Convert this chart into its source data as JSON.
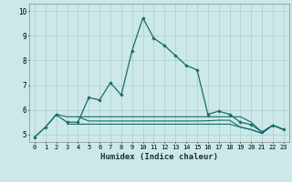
{
  "xlabel": "Humidex (Indice chaleur)",
  "ylabel": "",
  "bg_color": "#cce8e8",
  "grid_color": "#aacfcf",
  "line_color": "#1a6b6b",
  "xlim": [
    -0.5,
    23.5
  ],
  "ylim": [
    4.7,
    10.3
  ],
  "xticks": [
    0,
    1,
    2,
    3,
    4,
    5,
    6,
    7,
    8,
    9,
    10,
    11,
    12,
    13,
    14,
    15,
    16,
    17,
    18,
    19,
    20,
    21,
    22,
    23
  ],
  "yticks": [
    5,
    6,
    7,
    8,
    9,
    10
  ],
  "line1_x": [
    0,
    1,
    2,
    3,
    4,
    5,
    6,
    7,
    8,
    9,
    10,
    11,
    12,
    13,
    14,
    15,
    16,
    17,
    18,
    19,
    20,
    21,
    22,
    23
  ],
  "line1_y": [
    4.9,
    5.3,
    5.8,
    5.5,
    5.5,
    6.5,
    6.4,
    7.1,
    6.6,
    8.4,
    9.72,
    8.9,
    8.6,
    8.2,
    7.8,
    7.62,
    5.82,
    5.95,
    5.82,
    5.5,
    5.4,
    5.1,
    5.38,
    5.2
  ],
  "line2_x": [
    0,
    1,
    2,
    3,
    4,
    5,
    6,
    7,
    8,
    9,
    10,
    11,
    12,
    13,
    14,
    15,
    16,
    17,
    18,
    19,
    20,
    21,
    22,
    23
  ],
  "line2_y": [
    4.9,
    5.3,
    5.82,
    5.72,
    5.72,
    5.72,
    5.72,
    5.72,
    5.72,
    5.72,
    5.72,
    5.72,
    5.72,
    5.72,
    5.72,
    5.72,
    5.72,
    5.72,
    5.72,
    5.72,
    5.5,
    5.1,
    5.38,
    5.2
  ],
  "line3_x": [
    3,
    4,
    5,
    6,
    7,
    8,
    9,
    10,
    11,
    12,
    13,
    14,
    15,
    16,
    17,
    18,
    19,
    20,
    21,
    22,
    23
  ],
  "line3_y": [
    5.42,
    5.42,
    5.42,
    5.42,
    5.42,
    5.42,
    5.42,
    5.42,
    5.42,
    5.42,
    5.42,
    5.42,
    5.42,
    5.42,
    5.42,
    5.42,
    5.3,
    5.2,
    5.05,
    5.38,
    5.2
  ],
  "line4_x": [
    4,
    5,
    6,
    7,
    8,
    9,
    10,
    11,
    12,
    13,
    14,
    15,
    16,
    17,
    18,
    19,
    20,
    21,
    22,
    23
  ],
  "line4_y": [
    5.72,
    5.55,
    5.55,
    5.55,
    5.55,
    5.55,
    5.55,
    5.55,
    5.55,
    5.55,
    5.55,
    5.55,
    5.56,
    5.58,
    5.58,
    5.3,
    5.2,
    5.05,
    5.38,
    5.2
  ]
}
